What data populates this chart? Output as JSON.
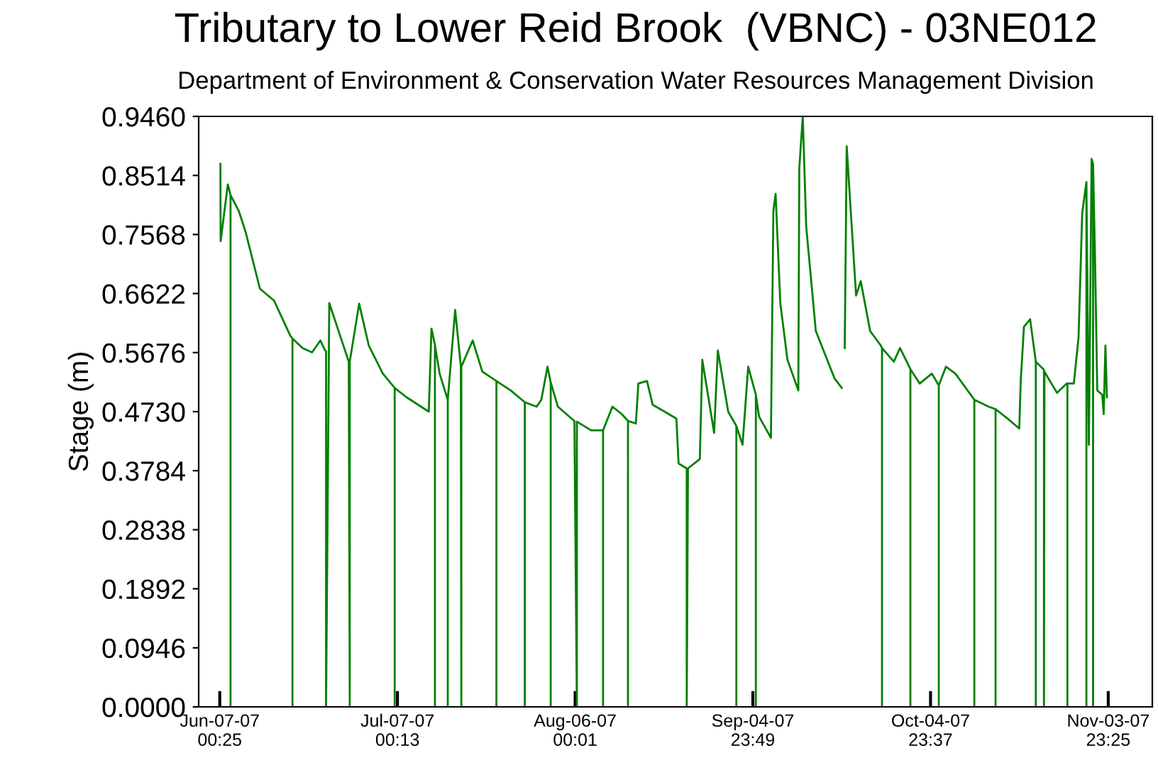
{
  "chart_data": {
    "type": "line",
    "title": "Tributary to Lower Reid Brook  (VBNC) - 03NE012",
    "subtitle": "Department of Environment & Conservation Water Resources Management Division",
    "ylabel": "Stage (m)",
    "x": [
      "2007-06-07T03:00",
      "2007-06-07T04:00",
      "2007-06-08T09:00",
      "2007-06-08T20:00",
      "2007-06-08T20:00",
      "2007-06-08T20:00",
      "2007-06-10T05:00",
      "2007-06-11T09:00",
      "2007-06-13T19:00",
      "2007-06-16T04:00",
      "2007-06-18T23:00",
      "2007-06-19T07:00",
      "2007-06-19T07:00",
      "2007-06-19T07:00",
      "2007-06-20T23:00",
      "2007-06-22T14:00",
      "2007-06-24T00:00",
      "2007-06-24T19:00",
      "2007-06-24T23:00",
      "2007-06-24T23:00",
      "2007-06-25T12:00",
      "2007-06-28T19:00",
      "2007-06-28T23:00",
      "2007-06-28T23:00",
      "2007-06-30T13:00",
      "2007-07-02T04:00",
      "2007-07-04T13:00",
      "2007-07-06T13:00",
      "2007-07-06T13:00",
      "2007-07-06T13:00",
      "2007-07-08T13:00",
      "2007-07-12T07:00",
      "2007-07-12T18:00",
      "2007-07-13T08:00",
      "2007-07-13T08:00",
      "2007-07-13T08:00",
      "2007-07-14T03:00",
      "2007-07-15T12:00",
      "2007-07-15T12:00",
      "2007-07-15T12:00",
      "2007-07-16T18:00",
      "2007-07-17T17:00",
      "2007-07-17T19:00",
      "2007-07-17T19:00",
      "2007-07-19T17:00",
      "2007-07-21T08:00",
      "2007-07-23T17:00",
      "2007-07-23T17:00",
      "2007-07-23T17:00",
      "2007-07-26T03:00",
      "2007-07-28T12:00",
      "2007-07-28T12:00",
      "2007-07-28T12:00",
      "2007-07-30T12:00",
      "2007-07-31T07:00",
      "2007-08-01T08:00",
      "2007-08-01T21:00",
      "2007-08-01T21:00",
      "2007-08-01T21:00",
      "2007-08-03T02:00",
      "2007-08-05T21:00",
      "2007-08-06T07:00",
      "2007-08-06T07:00",
      "2007-08-08T17:00",
      "2007-08-10T17:00",
      "2007-08-10T17:00",
      "2007-08-10T17:00",
      "2007-08-12T07:00",
      "2007-08-13T21:00",
      "2007-08-14T22:00",
      "2007-08-14T22:00",
      "2007-08-14T22:00",
      "2007-08-16T06:00",
      "2007-08-16T16:00",
      "2007-08-18T03:00",
      "2007-08-19T02:00",
      "2007-08-23T02:00",
      "2007-08-23T11:00",
      "2007-08-24T20:00",
      "2007-08-24T20:00",
      "2007-08-25T01:00",
      "2007-08-27T01:00",
      "2007-08-27T11:00",
      "2007-08-29T11:00",
      "2007-08-30T02:00",
      "2007-08-31T20:00",
      "2007-09-02T05:00",
      "2007-09-02T05:00",
      "2007-09-02T05:00",
      "2007-09-03T06:00",
      "2007-09-04T05:00",
      "2007-09-05T12:00",
      "2007-09-05T12:00",
      "2007-09-05T12:00",
      "2007-09-06T01:00",
      "2007-09-08T01:00",
      "2007-09-08T11:00",
      "2007-09-08T20:00",
      "2007-09-09T15:00",
      "2007-09-10T20:00",
      "2007-09-12T16:00",
      "2007-09-12T20:00",
      "2007-09-13T10:00",
      "2007-09-14T00:00",
      "2007-09-15T15:00",
      "2007-09-18T19:00",
      "2007-09-20T00:00",
      "2007-09-20T06:00",
      "2007-09-20T12:00",
      "2007-09-20T20:00",
      "2007-09-21T05:00",
      "2007-09-22T10:00",
      "2007-09-23T05:00",
      "2007-09-24T19:00",
      "2007-09-26T14:00",
      "2007-09-26T19:00",
      "2007-09-26T19:00",
      "2007-09-26T19:00",
      "2007-09-28T19:00",
      "2007-09-29T20:00",
      "2007-10-01T14:00",
      "2007-10-01T14:00",
      "2007-10-01T14:00",
      "2007-10-03T04:00",
      "2007-10-05T05:00",
      "2007-10-06T09:00",
      "2007-10-06T09:00",
      "2007-10-06T09:00",
      "2007-10-07T14:00",
      "2007-10-09T04:00",
      "2007-10-12T09:00",
      "2007-10-12T09:00",
      "2007-10-12T09:00",
      "2007-10-14T19:00",
      "2007-10-15T23:00",
      "2007-10-15T23:00",
      "2007-10-15T23:00",
      "2007-10-17T23:00",
      "2007-10-19T23:00",
      "2007-10-20T05:00",
      "2007-10-20T18:00",
      "2007-10-21T19:00",
      "2007-10-22T18:00",
      "2007-10-22T18:00",
      "2007-10-22T18:00",
      "2007-10-24T03:00",
      "2007-10-24T03:00",
      "2007-10-24T05:00",
      "2007-10-26T08:00",
      "2007-10-27T23:00",
      "2007-10-28T02:00",
      "2007-10-28T02:00",
      "2007-10-28T02:00",
      "2007-10-29T04:00",
      "2007-10-29T23:00",
      "2007-10-30T14:00",
      "2007-10-31T07:00",
      "2007-10-31T07:00",
      "2007-10-31T07:00",
      "2007-10-31T17:00",
      "2007-11-01T04:00",
      "2007-11-01T10:00",
      "2007-11-01T10:00",
      "2007-11-01T10:00",
      "2007-11-01T18:00",
      "2007-11-02T03:00",
      "2007-11-02T23:00",
      "2007-11-03T05:00",
      "2007-11-03T12:00",
      "2007-11-03T18:00"
    ],
    "values": [
      0.87,
      0.746,
      0.837,
      0.82,
      0,
      0.82,
      0.795,
      0.761,
      0.67,
      0.651,
      0.594,
      0.59,
      0,
      0.59,
      0.575,
      0.568,
      0.587,
      0.571,
      0.57,
      0,
      0.647,
      0.553,
      0,
      0.553,
      0.646,
      0.579,
      0.534,
      0.511,
      0,
      0.511,
      0.496,
      0.473,
      0.606,
      0.58,
      0,
      0.58,
      0.534,
      0.492,
      0,
      0.492,
      0.636,
      0.545,
      0,
      0.545,
      0.587,
      0.537,
      0.522,
      0,
      0.522,
      0.507,
      0.488,
      0,
      0.488,
      0.481,
      0.492,
      0.545,
      0.52,
      0,
      0.52,
      0.481,
      0.458,
      0,
      0.457,
      0.443,
      0.443,
      0,
      0.443,
      0.481,
      0.469,
      0.458,
      0,
      0.458,
      0.454,
      0.518,
      0.522,
      0.484,
      0.462,
      0.39,
      0.382,
      0,
      0.382,
      0.397,
      0.556,
      0.439,
      0.571,
      0.473,
      0.45,
      0,
      0.45,
      0.42,
      0.545,
      0.5,
      0,
      0.5,
      0.465,
      0.431,
      0.795,
      0.822,
      0.647,
      0.556,
      0.507,
      0.863,
      0.946,
      0.769,
      0.602,
      0.526,
      0.511,
      null,
      0.575,
      0.898,
      0.841,
      0.659,
      0.682,
      0.602,
      0.579,
      0.575,
      0,
      0.575,
      0.553,
      0.575,
      0.541,
      0,
      0.541,
      0.518,
      0.534,
      0.515,
      0,
      0.515,
      0.545,
      0.534,
      0.492,
      0,
      0.492,
      0.481,
      0.477,
      0,
      0.477,
      0.462,
      0.446,
      0.522,
      0.609,
      0.621,
      0.553,
      0,
      0.553,
      0.54,
      0,
      0.537,
      0.503,
      0.518,
      0.518,
      0,
      0.518,
      0.518,
      0.591,
      0.791,
      0.841,
      0,
      0.841,
      0.42,
      0.878,
      0.87,
      0,
      0.87,
      0.716,
      0.507,
      0.5,
      0.469,
      0.579,
      0.496
    ],
    "color": "#008000",
    "xlim": [
      "2007-06-03T11:00",
      "2007-11-11T10:00"
    ],
    "xticks": [
      {
        "value": "2007-06-07T00:25",
        "label": "Jun-07-07\n00:25"
      },
      {
        "value": "2007-07-07T00:13",
        "label": "Jul-07-07\n00:13"
      },
      {
        "value": "2007-08-06T00:01",
        "label": "Aug-06-07\n00:01"
      },
      {
        "value": "2007-09-04T23:49",
        "label": "Sep-04-07\n23:49"
      },
      {
        "value": "2007-10-04T23:37",
        "label": "Oct-04-07\n23:37"
      },
      {
        "value": "2007-11-03T23:25",
        "label": "Nov-03-07\n23:25"
      }
    ],
    "ylim": [
      0,
      0.946
    ],
    "yticks": [
      {
        "value": 0,
        "label": "0.0000"
      },
      {
        "value": 0.0946,
        "label": "0.0946"
      },
      {
        "value": 0.1892,
        "label": "0.1892"
      },
      {
        "value": 0.2838,
        "label": "0.2838"
      },
      {
        "value": 0.3784,
        "label": "0.3784"
      },
      {
        "value": 0.473,
        "label": "0.4730"
      },
      {
        "value": 0.5676,
        "label": "0.5676"
      },
      {
        "value": 0.6622,
        "label": "0.6622"
      },
      {
        "value": 0.7568,
        "label": "0.7568"
      },
      {
        "value": 0.8514,
        "label": "0.8514"
      },
      {
        "value": 0.946,
        "label": "0.9460"
      }
    ],
    "grid": false,
    "legend": false,
    "marker": "none",
    "line_style": "solid"
  }
}
